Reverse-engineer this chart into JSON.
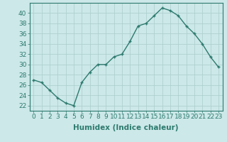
{
  "x": [
    0,
    1,
    2,
    3,
    4,
    5,
    6,
    7,
    8,
    9,
    10,
    11,
    12,
    13,
    14,
    15,
    16,
    17,
    18,
    19,
    20,
    21,
    22,
    23
  ],
  "y": [
    27,
    26.5,
    25,
    23.5,
    22.5,
    22,
    26.5,
    28.5,
    30,
    30,
    31.5,
    32,
    34.5,
    37.5,
    38,
    39.5,
    41,
    40.5,
    39.5,
    37.5,
    36,
    34,
    31.5,
    29.5
  ],
  "xlabel": "Humidex (Indice chaleur)",
  "ylim": [
    21,
    42
  ],
  "xlim": [
    -0.5,
    23.5
  ],
  "yticks": [
    22,
    24,
    26,
    28,
    30,
    32,
    34,
    36,
    38,
    40
  ],
  "xticks": [
    0,
    1,
    2,
    3,
    4,
    5,
    6,
    7,
    8,
    9,
    10,
    11,
    12,
    13,
    14,
    15,
    16,
    17,
    18,
    19,
    20,
    21,
    22,
    23
  ],
  "line_color": "#2d7a6e",
  "marker_color": "#2d7a6e",
  "bg_color": "#cce8e8",
  "grid_color": "#aacccc",
  "axis_color": "#2d7a6e",
  "tick_label_color": "#2d7a6e",
  "xlabel_color": "#2d7a6e",
  "xlabel_fontsize": 7.5,
  "tick_fontsize": 6.5,
  "linewidth": 1.0,
  "markersize": 2.5
}
